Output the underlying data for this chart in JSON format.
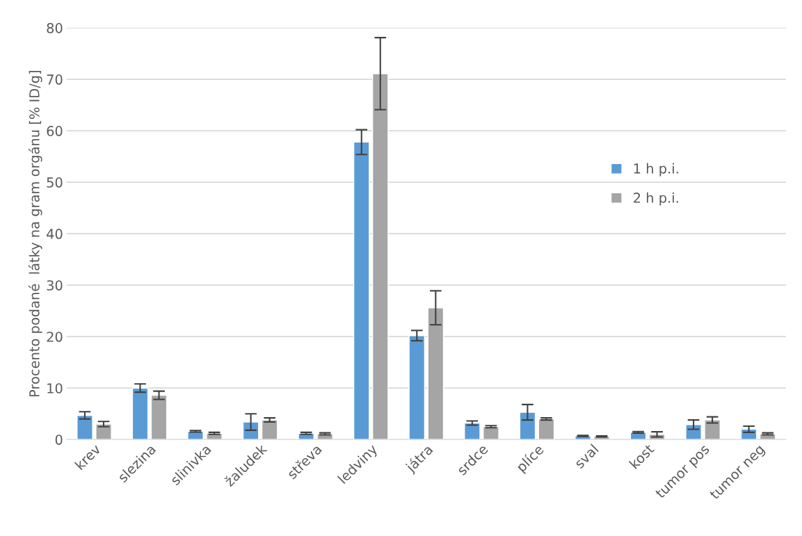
{
  "chart_data": {
    "type": "bar",
    "ylabel": "Procento podané  látky na gram orgánu [% ID/g]",
    "categories": [
      "krev",
      "slezina",
      "slinivka",
      "žaludek",
      "střeva",
      "ledviny",
      "játra",
      "srdce",
      "plíce",
      "sval",
      "kost",
      "tumor pos",
      "tumor neg"
    ],
    "series": [
      {
        "name": "1 h p.i.",
        "color": "#5b9bd5",
        "values": [
          4.7,
          10.0,
          1.6,
          3.4,
          1.2,
          57.8,
          20.2,
          3.2,
          5.3,
          0.7,
          1.4,
          2.9,
          2.0
        ],
        "errors": [
          0.7,
          0.8,
          0.15,
          1.6,
          0.2,
          2.4,
          1.0,
          0.4,
          1.5,
          0.1,
          0.15,
          0.9,
          0.6
        ]
      },
      {
        "name": "2 h p.i.",
        "color": "#a5a5a5",
        "values": [
          3.0,
          8.6,
          1.2,
          3.8,
          1.1,
          71.1,
          25.6,
          2.5,
          4.0,
          0.6,
          1.0,
          3.8,
          1.1
        ],
        "errors": [
          0.5,
          0.8,
          0.2,
          0.4,
          0.2,
          7.0,
          3.3,
          0.2,
          0.2,
          0.1,
          0.5,
          0.6,
          0.2
        ]
      }
    ],
    "ylim": [
      0,
      80
    ],
    "yticks": [
      0,
      10,
      20,
      30,
      40,
      50,
      60,
      70,
      80
    ],
    "grid": "y",
    "legend": "right"
  }
}
